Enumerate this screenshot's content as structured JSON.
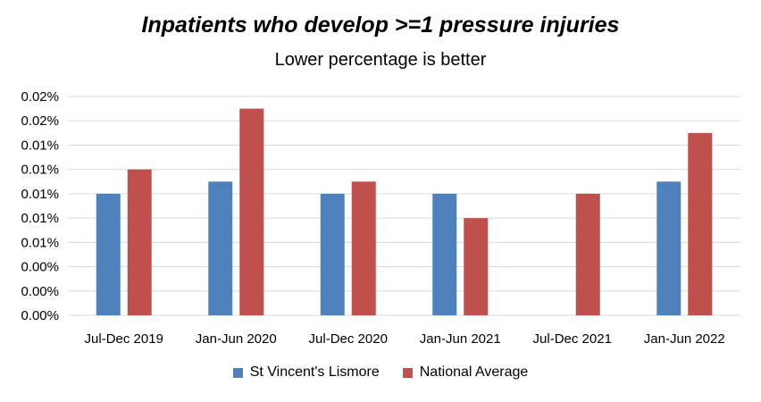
{
  "chart_data": {
    "type": "bar",
    "title": "Inpatients who develop >=1 pressure  injuries",
    "subtitle": "Lower percentage is better",
    "xlabel": "",
    "ylabel": "",
    "categories": [
      "Jul-Dec 2019",
      "Jan-Jun 2020",
      "Jul-Dec 2020",
      "Jan-Jun 2021",
      "Jul-Dec 2021",
      "Jan-Jun 2022"
    ],
    "y_tick_labels": [
      "0.00%",
      "0.00%",
      "0.00%",
      "0.01%",
      "0.01%",
      "0.01%",
      "0.01%",
      "0.01%",
      "0.02%",
      "0.02%"
    ],
    "ylim": [
      0,
      0.018
    ],
    "grid": true,
    "legend_position": "bottom",
    "series": [
      {
        "name": "St Vincent's Lismore",
        "color": "#4F81BD",
        "values": [
          0.01,
          0.011,
          0.01,
          0.01,
          null,
          0.011
        ]
      },
      {
        "name": "National Average",
        "color": "#C0504D",
        "values": [
          0.012,
          0.017,
          0.011,
          0.008,
          0.01,
          0.015
        ]
      }
    ]
  }
}
